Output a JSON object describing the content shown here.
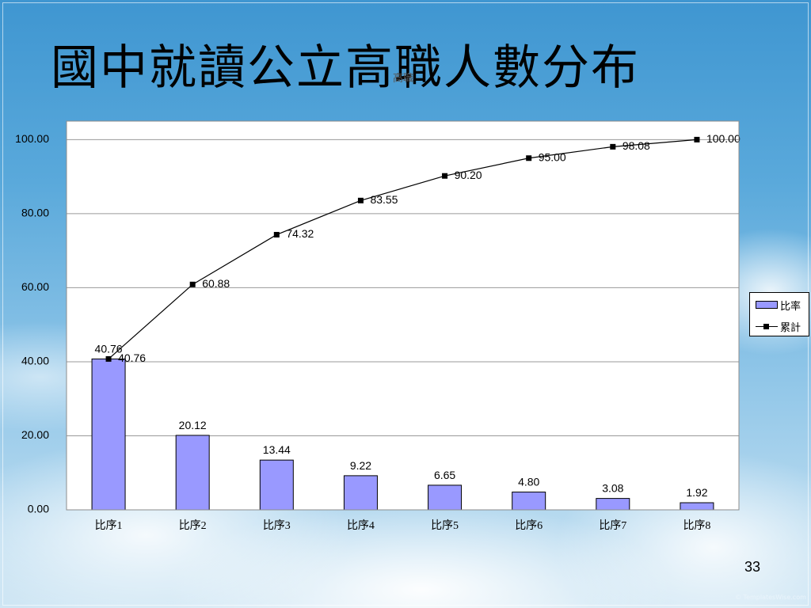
{
  "slide": {
    "title": "國中就讀公立高職人數分布",
    "overlay_text": "高職",
    "page_number": "33",
    "watermark": "© TemplatesWise.com"
  },
  "chart_data": {
    "type": "bar",
    "categories": [
      "比序1",
      "比序2",
      "比序3",
      "比序4",
      "比序5",
      "比序6",
      "比序7",
      "比序8"
    ],
    "series": [
      {
        "name": "比率",
        "type": "bar",
        "color": "#9999ff",
        "values": [
          40.76,
          20.12,
          13.44,
          9.22,
          6.65,
          4.8,
          3.08,
          1.92
        ]
      },
      {
        "name": "累計",
        "type": "line",
        "color": "#000000",
        "values": [
          40.76,
          60.88,
          74.32,
          83.55,
          90.2,
          95.0,
          98.08,
          100.0
        ]
      }
    ],
    "ylim": [
      0,
      105
    ],
    "yticks": [
      0,
      20,
      40,
      60,
      80,
      100
    ],
    "grid": true,
    "legend": "right"
  }
}
